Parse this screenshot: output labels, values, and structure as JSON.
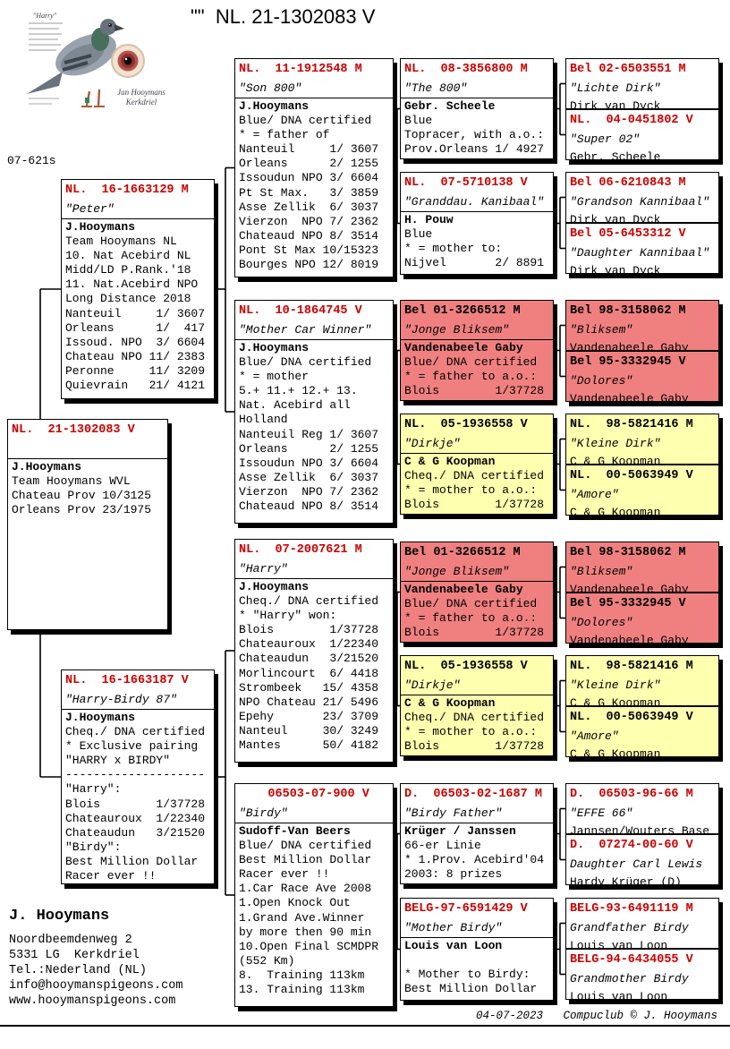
{
  "title": "\"\"  NL. 21-1302083 V",
  "photo": {
    "inset_label": "\"Harry\"",
    "sig_line1": "Jan Hooymans",
    "sig_line2": "Kerkdriel",
    "code": "07-621s"
  },
  "owner": {
    "name": "J. Hooymans",
    "lines": [
      "Noordbeemdenweg 2",
      "5331 LG  Kerkdriel",
      "Tel.:Nederland (NL)",
      "info@hooymanspigeons.com",
      "www.hooymanspigeons.com"
    ]
  },
  "footer": "04-07-2023   Compuclub © J. Hooymans",
  "colors": {
    "accent_red": "#cc0000",
    "sire_line_pink": "#F08080",
    "dam_line_yellow": "#FFFFB0"
  },
  "boxes": [
    {
      "id": "S",
      "variant": "white",
      "ring": "NL.  21-1302083 V",
      "name": "",
      "lines": [
        "J.Hooymans",
        "Team Hooymans WVL",
        "Chateau Prov 10/3125",
        "Orleans Prov 23/1975"
      ]
    },
    {
      "id": "F",
      "variant": "white",
      "ring": "NL.  16-1663129 M",
      "name": "\"Peter\"",
      "lines": [
        "J.Hooymans",
        "Team Hooymans NL",
        "10. Nat Acebird NL",
        "Midd/LD P.Rank.'18",
        "11. Nat.Acebird NPO",
        "Long Distance 2018",
        "Nanteuil     1/ 3607",
        "Orleans      1/  417",
        "Issoud. NPO  3/ 6604",
        "Chateau NPO 11/ 2383",
        "Peronne     11/ 3209",
        "Quievrain   21/ 4121"
      ]
    },
    {
      "id": "M",
      "variant": "white",
      "ring": "NL.  16-1663187 V",
      "name": "\"Harry-Birdy 87\"",
      "lines": [
        "J.Hooymans",
        "Cheq./ DNA certified",
        "* Exclusive pairing",
        "\"HARRY x BIRDY\"",
        "--------------------",
        "\"Harry\":",
        "Blois        1/37728",
        "Chateauroux  1/22340",
        "Chateaudun   3/21520",
        "\"Birdy\":",
        "Best Million Dollar",
        "Racer ever !!"
      ]
    },
    {
      "id": "FF",
      "variant": "white",
      "ring": "NL.  11-1912548 M",
      "name": "\"Son 800\"",
      "lines": [
        "J.Hooymans",
        "Blue/ DNA certified",
        "* = father of",
        "Nanteuil     1/ 3607",
        "Orleans      2/ 1255",
        "Issoudun NPO 3/ 6604",
        "Pt St Max.   3/ 3859",
        "Asse Zellik  6/ 3037",
        "Vierzon  NPO 7/ 2362",
        "Chateaud NPO 8/ 3514",
        "Pont St Max 10/15323",
        "Bourges NPO 12/ 8019"
      ]
    },
    {
      "id": "FM",
      "variant": "white",
      "ring": "NL.  10-1864745 V",
      "name": "\"Mother Car Winner\"",
      "lines": [
        "J.Hooymans",
        "Blue/ DNA certified",
        "* = mother",
        "5.+ 11.+ 12.+ 13.",
        "Nat. Acebird all",
        "Holland",
        "Nanteuil Reg 1/ 3607",
        "Orleans      2/ 1255",
        "Issoudun NPO 3/ 6604",
        "Asse Zellik  6/ 3037",
        "Vierzon  NPO 7/ 2362",
        "Chateaud NPO 8/ 3514"
      ]
    },
    {
      "id": "MF",
      "variant": "white",
      "ring": "NL.  07-2007621 M",
      "name": "\"Harry\"",
      "lines": [
        "J.Hooymans",
        "Cheq./ DNA certified",
        "* \"Harry\" won:",
        "Blois        1/37728",
        "Chateauroux  1/22340",
        "Chateaudun   3/21520",
        "Morlincourt  6/ 4418",
        "Strombeek   15/ 4358",
        "NPO Chateau 21/ 5496",
        "Epehy       23/ 3709",
        "Nanteul     30/ 3249",
        "Mantes      50/ 4182"
      ]
    },
    {
      "id": "MM",
      "variant": "white",
      "ring": "    06503-07-900 V",
      "name": "\"Birdy\"",
      "lines": [
        "Sudoff-Van Beers",
        "Blue/ DNA certified",
        "Best Million Dollar",
        "Racer ever !!",
        "1.Car Race Ave 2008",
        "1.Open Knock Out",
        "1.Grand Ave.Winner",
        "by more then 90 min",
        "10.Open Final SCMDPR",
        "(552 Km)",
        "8.  Training 113km",
        "13. Training 113km"
      ]
    },
    {
      "id": "FFF",
      "variant": "white",
      "ring": "NL.  08-3856800 M",
      "name": "\"The 800\"",
      "lines": [
        "Gebr. Scheele",
        "Blue",
        "Topracer, with a.o.:",
        "Prov.Orleans 1/ 4927"
      ]
    },
    {
      "id": "FFM",
      "variant": "white",
      "ring": "NL.  07-5710138 V",
      "name": "\"Granddau. Kanibaal\"",
      "lines": [
        "H. Pouw",
        "Blue",
        "* = mother to:",
        "Nijvel       2/ 8891"
      ]
    },
    {
      "id": "FMF",
      "variant": "pink",
      "ring": "Bel 01-3266512 M",
      "name": "\"Jonge Bliksem\"",
      "lines": [
        "Vandenabeele Gaby",
        "Blue/ DNA certified",
        "* = father to a.o.:",
        "Blois        1/37728"
      ]
    },
    {
      "id": "FMM",
      "variant": "yellow",
      "ring": "NL.  05-1936558 V",
      "name": "\"Dirkje\"",
      "lines": [
        "C & G Koopman",
        "Cheq./ DNA certified",
        "* = mother to a.o.:",
        "Blois        1/37728"
      ]
    },
    {
      "id": "MFF",
      "variant": "pink",
      "ring": "Bel 01-3266512 M",
      "name": "\"Jonge Bliksem\"",
      "lines": [
        "Vandenabeele Gaby",
        "Blue/ DNA certified",
        "* = father to a.o.:",
        "Blois        1/37728"
      ]
    },
    {
      "id": "MFM",
      "variant": "yellow",
      "ring": "NL.  05-1936558 V",
      "name": "\"Dirkje\"",
      "lines": [
        "C & G Koopman",
        "Cheq./ DNA certified",
        "* = mother to a.o.:",
        "Blois        1/37728"
      ]
    },
    {
      "id": "MMF",
      "variant": "white",
      "ring": "D.  06503-02-1687 M",
      "name": "\"Birdy Father\"",
      "lines": [
        "Krüger / Janssen",
        "66-er Linie",
        "* 1.Prov. Acebird'04",
        "2003: 8 prizes"
      ]
    },
    {
      "id": "MMM",
      "variant": "white",
      "ring": "BELG-97-6591429 V",
      "name": "\"Mother Birdy\"",
      "lines": [
        "Louis van Loon",
        "",
        "* Mother to Birdy:",
        "Best Million Dollar"
      ]
    },
    {
      "id": "FFFF",
      "variant": "white",
      "ring": "Bel 02-6503551 M",
      "name": "\"Lichte Dirk\"",
      "lines": [
        "Dirk van Dyck"
      ]
    },
    {
      "id": "FFFM",
      "variant": "white",
      "ring": "NL.  04-0451802 V",
      "name": "\"Super 02\"",
      "lines": [
        "Gebr. Scheele"
      ]
    },
    {
      "id": "FFMF",
      "variant": "white",
      "ring": "Bel 06-6210843 M",
      "name": "\"Grandson Kannibaal\"",
      "lines": [
        "Dirk van Dyck"
      ]
    },
    {
      "id": "FFMM",
      "variant": "white",
      "ring": "Bel 05-6453312 V",
      "name": "\"Daughter Kannibaal\"",
      "lines": [
        "Dirk van Dyck"
      ]
    },
    {
      "id": "FMFF",
      "variant": "pink",
      "ring": "Bel 98-3158062 M",
      "name": "\"Bliksem\"",
      "lines": [
        "Vandenabeele Gaby"
      ]
    },
    {
      "id": "FMFM",
      "variant": "pink",
      "ring": "Bel 95-3332945 V",
      "name": "\"Dolores\"",
      "lines": [
        "Vandenabeele Gaby"
      ]
    },
    {
      "id": "FMMF",
      "variant": "yellow",
      "ring": "NL.  98-5821416 M",
      "name": "\"Kleine Dirk\"",
      "lines": [
        "C & G Koopman"
      ]
    },
    {
      "id": "FMMM",
      "variant": "yellow",
      "ring": "NL.  00-5063949 V",
      "name": "\"Amore\"",
      "lines": [
        "C & G Koopman"
      ]
    },
    {
      "id": "MFFF",
      "variant": "pink",
      "ring": "Bel 98-3158062 M",
      "name": "\"Bliksem\"",
      "lines": [
        "Vandenabeele Gaby"
      ]
    },
    {
      "id": "MFFM",
      "variant": "pink",
      "ring": "Bel 95-3332945 V",
      "name": "\"Dolores\"",
      "lines": [
        "Vandenabeele Gaby"
      ]
    },
    {
      "id": "MFMF",
      "variant": "yellow",
      "ring": "NL.  98-5821416 M",
      "name": "\"Kleine Dirk\"",
      "lines": [
        "C & G Koopman"
      ]
    },
    {
      "id": "MFMM",
      "variant": "yellow",
      "ring": "NL.  00-5063949 V",
      "name": "\"Amore\"",
      "lines": [
        "C & G Koopman"
      ]
    },
    {
      "id": "MMFF",
      "variant": "white",
      "ring": "D.  06503-96-66 M",
      "name": "\"EFFE 66\"",
      "lines": [
        "Jannsen/Wouters Base"
      ]
    },
    {
      "id": "MMFM",
      "variant": "white",
      "ring": "D.  07274-00-60 V",
      "name": "Daughter Carl Lewis",
      "lines": [
        "Hardy Krüger (D)"
      ]
    },
    {
      "id": "MMMF",
      "variant": "white",
      "ring": "BELG-93-6491119 M",
      "name": "Grandfather Birdy",
      "lines": [
        "Louis van Loon"
      ]
    },
    {
      "id": "MMMM",
      "variant": "white",
      "ring": "BELG-94-6434055 V",
      "name": "Grandmother Birdy",
      "lines": [
        "Louis van Loon"
      ]
    }
  ]
}
